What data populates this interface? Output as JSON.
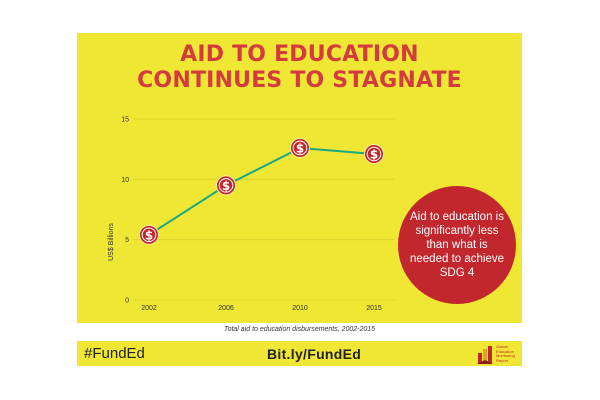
{
  "title_lines": [
    "AID TO EDUCATION",
    "CONTINUES TO STAGNATE"
  ],
  "callout_text": "Aid to education is significantly less than what is needed to achieve SDG 4",
  "caption": "Total aid to education disbursements, 2002-2015",
  "footer": {
    "hashtag": "#FundEd",
    "link": "Bit.ly/FundEd",
    "logo_lines": [
      "Global",
      "Education",
      "Monitoring",
      "Report"
    ]
  },
  "colors": {
    "background": "#f0e634",
    "title": "#d33b3e",
    "line": "#1aa882",
    "marker": "#c1272d",
    "grid": "#d9cf2a"
  },
  "marker_symbol": "$",
  "chart_data": {
    "type": "line",
    "title": "AID TO EDUCATION CONTINUES TO STAGNATE",
    "xlabel": "",
    "ylabel": "US$ Billions",
    "categories": [
      "2002",
      "2006",
      "2010",
      "2015"
    ],
    "values": [
      5.4,
      9.5,
      12.6,
      12.1
    ],
    "ylim": [
      0,
      15
    ],
    "yticks": [
      0,
      5,
      10,
      15
    ],
    "grid": true,
    "legend": "none"
  }
}
